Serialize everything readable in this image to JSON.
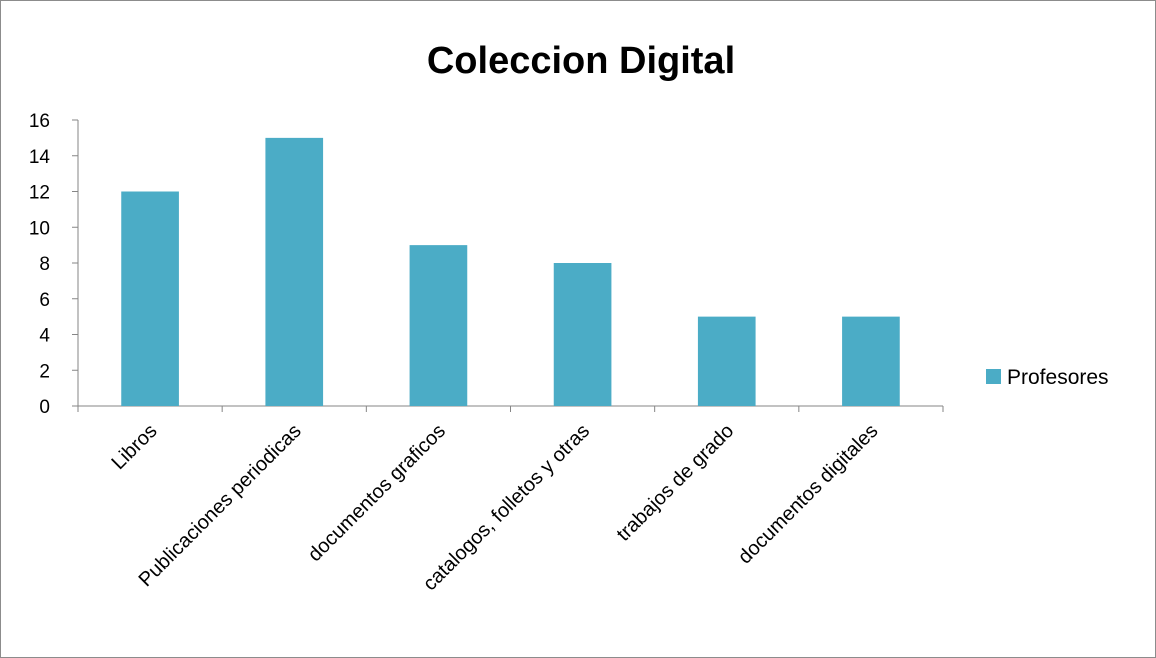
{
  "chart_data": {
    "type": "bar",
    "title": "Coleccion Digital",
    "categories": [
      "Libros",
      "Publicaciones periodicas",
      "documentos graficos",
      "catalogos, folletos y otras",
      "trabajos de grado",
      "documentos digitales"
    ],
    "series": [
      {
        "name": "Profesores",
        "values": [
          12,
          15,
          9,
          8,
          5,
          5
        ],
        "color": "#4BACC6"
      }
    ],
    "y_ticks": [
      "0",
      "2",
      "4",
      "6",
      "8",
      "10",
      "12",
      "14",
      "16"
    ],
    "ylim": [
      0,
      16
    ],
    "grid": false,
    "legend_position": "right",
    "xlabel": "",
    "ylabel": ""
  }
}
